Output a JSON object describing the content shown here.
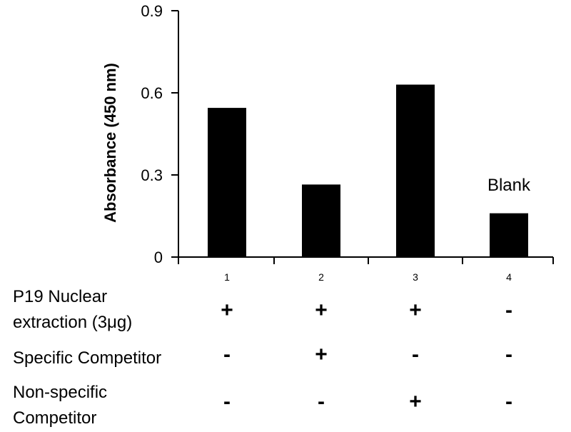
{
  "chart_data": {
    "type": "bar",
    "categories": [
      "1",
      "2",
      "3",
      "4"
    ],
    "values": [
      0.545,
      0.265,
      0.63,
      0.16
    ],
    "ylabel": "Absorbance (450 nm)",
    "xlabel": "",
    "ylim": [
      0,
      0.9
    ],
    "yticks": [
      "0",
      "0.3",
      "0.6",
      "0.9"
    ],
    "ytick_values": [
      0,
      0.3,
      0.6,
      0.9
    ],
    "bar_color": "#000000",
    "annotations": [
      {
        "text": "Blank",
        "category": "4"
      }
    ],
    "grid": false,
    "legend": "none"
  },
  "conditions": {
    "rows": [
      {
        "label_lines": [
          "P19 Nuclear",
          "extraction (3μg)"
        ],
        "signs": [
          "+",
          "+",
          "+",
          "-"
        ]
      },
      {
        "label_lines": [
          "Specific Competitor"
        ],
        "signs": [
          "-",
          "+",
          "-",
          "-"
        ]
      },
      {
        "label_lines": [
          "Non-specific",
          "Competitor"
        ],
        "signs": [
          "-",
          "-",
          "+",
          "-"
        ]
      }
    ]
  }
}
